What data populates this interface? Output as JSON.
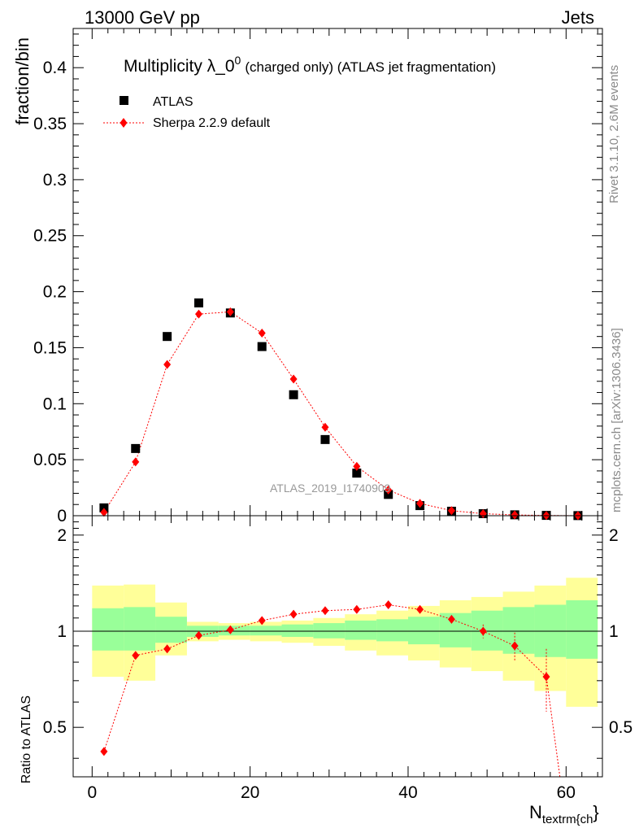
{
  "header": {
    "energy": "13000 GeV pp",
    "category": "Jets"
  },
  "side_text": {
    "rivet": "Rivet 3.1.10,  2.6M events",
    "mcplots": "mcplots.cern.ch [arXiv:1306.3436]"
  },
  "chart_data": [
    {
      "type": "scatter",
      "title": "Multiplicity λ_0",
      "title_sup": "0",
      "title_suffix": "(charged only) (ATLAS jet fragmentation)",
      "xlabel": "N",
      "xlabel_sub": "textrm{ch",
      "xlabel_close": "}",
      "ylabel": "fraction/bin",
      "watermark": "ATLAS_2019_I1740909",
      "xlim": [
        -2.4,
        64.6
      ],
      "ylim": [
        0,
        0.435
      ],
      "yticks": [
        0,
        0.05,
        0.1,
        0.15,
        0.2,
        0.25,
        0.3,
        0.35,
        0.4
      ],
      "ytick_labels": [
        "0",
        "0.05",
        "0.1",
        "0.15",
        "0.2",
        "0.25",
        "0.3",
        "0.35",
        "0.4"
      ],
      "legend_position": "top-left",
      "bin_edges": [
        0,
        4,
        8,
        12,
        16,
        20,
        24,
        28,
        32,
        36,
        40,
        44,
        48,
        52,
        56,
        60,
        64
      ],
      "x": [
        1.5,
        5.5,
        9.5,
        13.5,
        17.5,
        21.5,
        25.5,
        29.5,
        33.5,
        37.5,
        41.5,
        45.5,
        49.5,
        53.5,
        57.5,
        61.5
      ],
      "series": [
        {
          "name": "ATLAS",
          "color": "#000000",
          "marker": "square",
          "values": [
            0.007,
            0.06,
            0.16,
            0.19,
            0.181,
            0.151,
            0.108,
            0.068,
            0.038,
            0.019,
            0.009,
            0.004,
            0.0018,
            0.0008,
            0.0003,
            0.0001
          ]
        },
        {
          "name": "Sherpa 2.2.9 default",
          "color": "#ff0000",
          "marker": "diamond",
          "line": "dotted",
          "values": [
            0.003,
            0.048,
            0.135,
            0.18,
            0.182,
            0.163,
            0.122,
            0.079,
            0.044,
            0.023,
            0.011,
            0.0045,
            0.0018,
            0.0007,
            0.0002,
            5e-05
          ]
        }
      ]
    },
    {
      "type": "scatter",
      "ylabel": "Ratio to ATLAS",
      "xlim": [
        -2.4,
        64.6
      ],
      "ylim": [
        0.35,
        2.3
      ],
      "xticks": [
        0,
        20,
        40,
        60
      ],
      "xtick_labels": [
        "0",
        "20",
        "40",
        "60"
      ],
      "yticks": [
        0.5,
        1,
        2
      ],
      "ytick_labels": [
        "0.5",
        "1",
        "2"
      ],
      "reference": 1,
      "bin_edges": [
        0,
        4,
        8,
        12,
        16,
        20,
        24,
        28,
        32,
        36,
        40,
        44,
        48,
        52,
        56,
        60,
        64
      ],
      "band_outer": {
        "color": "#ffff99",
        "low": [
          0.72,
          0.7,
          0.84,
          0.93,
          0.94,
          0.93,
          0.92,
          0.9,
          0.87,
          0.84,
          0.81,
          0.77,
          0.75,
          0.7,
          0.65,
          0.58
        ],
        "high": [
          1.39,
          1.4,
          1.23,
          1.07,
          1.06,
          1.07,
          1.08,
          1.1,
          1.13,
          1.16,
          1.2,
          1.25,
          1.28,
          1.33,
          1.39,
          1.47
        ]
      },
      "band_inner": {
        "color": "#99ff99",
        "low": [
          0.87,
          0.87,
          0.92,
          0.96,
          0.97,
          0.97,
          0.96,
          0.95,
          0.94,
          0.93,
          0.91,
          0.89,
          0.87,
          0.85,
          0.83,
          0.82
        ],
        "high": [
          1.18,
          1.19,
          1.11,
          1.04,
          1.04,
          1.04,
          1.05,
          1.06,
          1.08,
          1.09,
          1.11,
          1.14,
          1.16,
          1.19,
          1.21,
          1.25
        ]
      },
      "series": [
        {
          "name": "Sherpa 2.2.9 default",
          "color": "#ff0000",
          "marker": "diamond",
          "values": [
            0.42,
            0.84,
            0.88,
            0.97,
            1.01,
            1.08,
            1.13,
            1.16,
            1.17,
            1.21,
            1.17,
            1.09,
            1.0,
            0.9,
            0.72,
            null
          ],
          "err_low": [
            0.02,
            0.01,
            0.01,
            0.005,
            0.005,
            0.005,
            0.005,
            0.01,
            0.01,
            0.01,
            0.015,
            0.03,
            0.05,
            0.09,
            0.16,
            null
          ],
          "err_high": [
            0.02,
            0.01,
            0.01,
            0.005,
            0.005,
            0.005,
            0.005,
            0.01,
            0.01,
            0.01,
            0.015,
            0.03,
            0.05,
            0.09,
            0.16,
            null
          ]
        }
      ]
    }
  ]
}
